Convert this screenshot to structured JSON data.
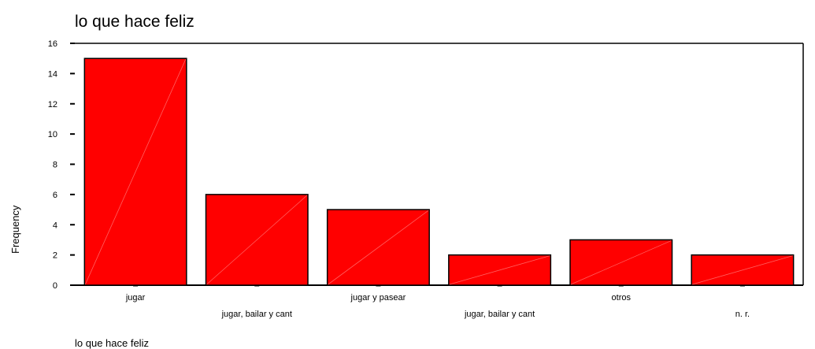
{
  "chart_data": {
    "type": "bar",
    "title": "lo que hace feliz",
    "xlabel": "lo que hace feliz",
    "ylabel": "Frequency",
    "categories": [
      "jugar",
      "jugar, bailar y cant",
      "jugar y pasear",
      "jugar, bailar y cant",
      "otros",
      "n. r."
    ],
    "values": [
      15,
      6,
      5,
      2,
      3,
      2
    ],
    "ylim": [
      0,
      16
    ],
    "yticks": [
      "0",
      "2",
      "4",
      "6",
      "8",
      "10",
      "12",
      "14",
      "16"
    ],
    "grid": false,
    "legend": "none",
    "bar_color": "#ff0000",
    "bar_outline_color": "#000000",
    "bar_hatch_color": "#ff6060"
  }
}
